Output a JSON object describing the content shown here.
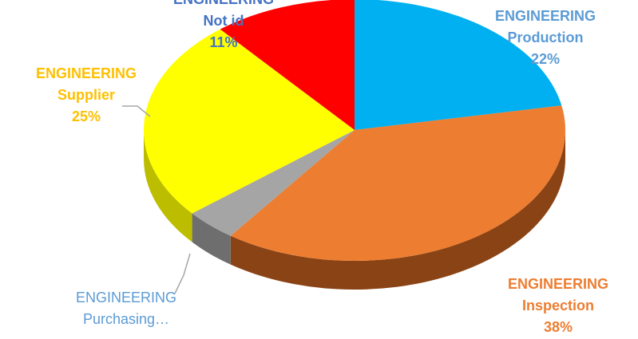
{
  "chart_data": {
    "type": "pie",
    "title": "",
    "series_label": "ENGINEERING",
    "slices": [
      {
        "label": "Production",
        "value": 22,
        "display": "22%",
        "color": "#00B0F0",
        "side_color": "#0083B3",
        "label_color": "#5B9BD5"
      },
      {
        "label": "Inspection",
        "value": 38,
        "display": "38%",
        "color": "#ED7D31",
        "side_color": "#8A4315",
        "label_color": "#ED7D31"
      },
      {
        "label": "Purchasing…",
        "value": 4,
        "display": "",
        "color": "#A5A5A5",
        "side_color": "#6E6E6E",
        "label_color": "#5B9BD5"
      },
      {
        "label": "Supplier",
        "value": 25,
        "display": "25%",
        "color": "#FFFF00",
        "side_color": "#BDBD00",
        "label_color": "#FFC000"
      },
      {
        "label": "Not id",
        "value": 11,
        "display": "11%",
        "color": "#FF0000",
        "side_color": "#B00000",
        "label_color": "#4472C4"
      }
    ],
    "legend": "none"
  }
}
